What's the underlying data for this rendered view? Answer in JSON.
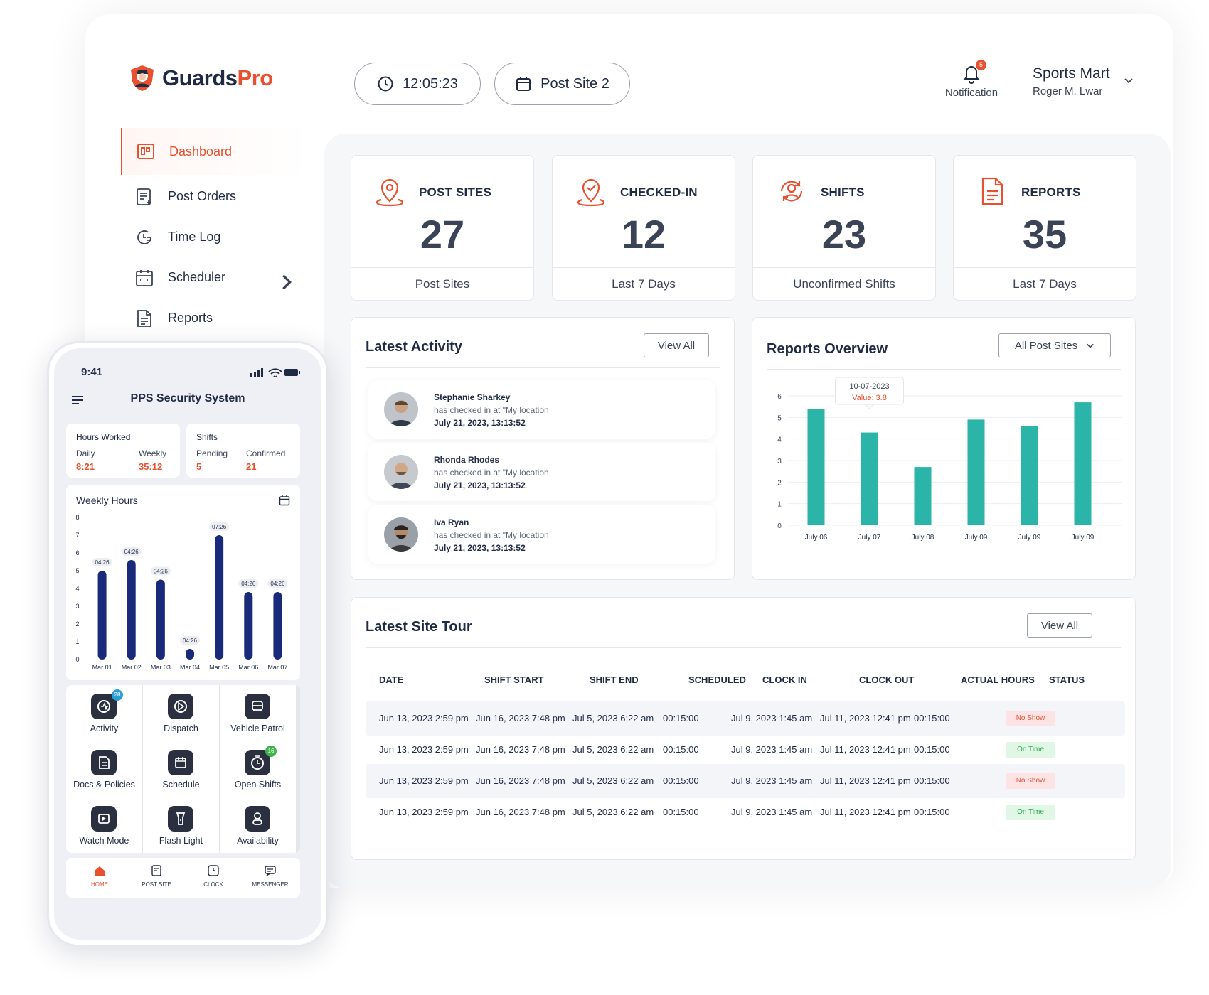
{
  "brand": {
    "name_dark": "Guards",
    "name_accent": "Pro"
  },
  "header": {
    "clock": "12:05:23",
    "site": "Post Site 2",
    "notification_label": "Notification",
    "notification_count": "5",
    "company": "Sports Mart",
    "user": "Roger M. Lwar"
  },
  "sidebar": {
    "items": [
      {
        "label": "Dashboard",
        "icon": "dashboard-icon",
        "active": true
      },
      {
        "label": "Post Orders",
        "icon": "post-orders-icon"
      },
      {
        "label": "Time Log",
        "icon": "time-log-icon"
      },
      {
        "label": "Scheduler",
        "icon": "calendar-icon",
        "has_submenu": true
      },
      {
        "label": "Reports",
        "icon": "report-icon"
      }
    ]
  },
  "stats": [
    {
      "title": "POST SITES",
      "value": "27",
      "footer": "Post Sites",
      "icon": "location-pin-icon"
    },
    {
      "title": "CHECKED-IN",
      "value": "12",
      "footer": "Last 7 Days",
      "icon": "check-location-icon"
    },
    {
      "title": "SHIFTS",
      "value": "23",
      "footer": "Unconfirmed Shifts",
      "icon": "user-sync-icon"
    },
    {
      "title": "REPORTS",
      "value": "35",
      "footer": "Last 7 Days",
      "icon": "document-icon"
    }
  ],
  "activity": {
    "title": "Latest Activity",
    "view_all": "View All",
    "items": [
      {
        "name": "Stephanie Sharkey",
        "desc": "has checked in at \"My location",
        "time": "July 21, 2023, 13:13:52"
      },
      {
        "name": "Rhonda Rhodes",
        "desc": "has checked in at \"My location",
        "time": "July 21, 2023, 13:13:52"
      },
      {
        "name": "Iva Ryan",
        "desc": "has checked in at \"My location",
        "time": "July 21, 2023, 13:13:52"
      }
    ]
  },
  "reports_overview": {
    "title": "Reports Overview",
    "filter": "All Post Sites",
    "tooltip": {
      "date": "10-07-2023",
      "value_label": "Value: 3.8"
    }
  },
  "chart_data": [
    {
      "type": "bar",
      "categories": [
        "July 06",
        "July 07",
        "July 08",
        "July 09",
        "July 09",
        "July 09"
      ],
      "values": [
        5.4,
        4.3,
        2.7,
        4.9,
        4.6,
        5.7
      ],
      "ylim": [
        0,
        6
      ],
      "yticks": [
        0,
        1,
        2,
        3,
        4,
        5,
        6
      ],
      "color": "#2ab5a8",
      "grid": true
    },
    {
      "type": "bar",
      "categories": [
        "Mar 01",
        "Mar 02",
        "Mar 03",
        "Mar 04",
        "Mar 05",
        "Mar 06",
        "Mar 07"
      ],
      "values": [
        5.0,
        5.6,
        4.5,
        0.6,
        7.0,
        3.8,
        3.8
      ],
      "labels": [
        "04:26",
        "04:26",
        "04:26",
        "04:26",
        "07:26",
        "04:26",
        "04:26"
      ],
      "ylim": [
        0,
        8
      ],
      "yticks": [
        0,
        1,
        2,
        3,
        4,
        5,
        6,
        7,
        8
      ],
      "color": "#1a2a7a"
    }
  ],
  "site_tour": {
    "title": "Latest Site Tour",
    "view_all": "View All",
    "headers": [
      "DATE",
      "SHIFT START",
      "SHIFT END",
      "SCHEDULED",
      "CLOCK IN",
      "CLOCK OUT",
      "ACTUAL HOURS",
      "STATUS"
    ],
    "rows": [
      {
        "date": "Jun 13, 2023 2:59 pm",
        "start": "Jun 16, 2023 7:48 pm",
        "end": "Jul 5, 2023 6:22 am",
        "scheduled": "00:15:00",
        "clock_in": "Jul 9, 2023 1:45 am",
        "clock_out": "Jul 11, 2023 12:41 pm",
        "actual": "00:15:00",
        "status": "No Show"
      },
      {
        "date": "Jun 13, 2023 2:59 pm",
        "start": "Jun 16, 2023 7:48 pm",
        "end": "Jul 5, 2023 6:22 am",
        "scheduled": "00:15:00",
        "clock_in": "Jul 9, 2023 1:45 am",
        "clock_out": "Jul 11, 2023 12:41 pm",
        "actual": "00:15:00",
        "status": "On Time"
      },
      {
        "date": "Jun 13, 2023 2:59 pm",
        "start": "Jun 16, 2023 7:48 pm",
        "end": "Jul 5, 2023 6:22 am",
        "scheduled": "00:15:00",
        "clock_in": "Jul 9, 2023 1:45 am",
        "clock_out": "Jul 11, 2023 12:41 pm",
        "actual": "00:15:00",
        "status": "No Show"
      },
      {
        "date": "Jun 13, 2023 2:59 pm",
        "start": "Jun 16, 2023 7:48 pm",
        "end": "Jul 5, 2023 6:22 am",
        "scheduled": "00:15:00",
        "clock_in": "Jul 9, 2023 1:45 am",
        "clock_out": "Jul 11, 2023 12:41 pm",
        "actual": "00:15:00",
        "status": "On Time"
      }
    ]
  },
  "phone": {
    "time": "9:41",
    "title": "PPS Security System",
    "hours": {
      "title": "Hours Worked",
      "daily_label": "Daily",
      "daily": "8:21",
      "weekly_label": "Weekly",
      "weekly": "35:12"
    },
    "shifts": {
      "title": "Shifts",
      "pending_label": "Pending",
      "pending": "5",
      "confirmed_label": "Confirmed",
      "confirmed": "21"
    },
    "weekly_title": "Weekly Hours",
    "grid": [
      {
        "label": "Activity",
        "icon": "activity-icon",
        "badge": "28",
        "badge_color": "#2a9fd6"
      },
      {
        "label": "Dispatch",
        "icon": "dispatch-icon"
      },
      {
        "label": "Vehicle Patrol",
        "icon": "vehicle-icon"
      },
      {
        "label": "Docs & Policies",
        "icon": "document-icon"
      },
      {
        "label": "Schedule",
        "icon": "calendar-icon"
      },
      {
        "label": "Open Shifts",
        "icon": "timer-icon",
        "badge": "16",
        "badge_color": "#3cb54a"
      },
      {
        "label": "Watch Mode",
        "icon": "watch-icon"
      },
      {
        "label": "Flash Light",
        "icon": "flashlight-icon"
      },
      {
        "label": "Availability",
        "icon": "person-icon"
      }
    ],
    "tabs": [
      {
        "label": "HOME",
        "icon": "home-icon",
        "active": true
      },
      {
        "label": "POST SITE",
        "icon": "post-site-icon"
      },
      {
        "label": "CLOCK",
        "icon": "clock-icon"
      },
      {
        "label": "MESSENGER",
        "icon": "message-icon"
      }
    ]
  },
  "colors": {
    "accent": "#e8502f",
    "teal": "#2ab5a8",
    "navy": "#1a2a7a",
    "no_show_bg": "#fde3e3",
    "no_show_fg": "#e8502f",
    "on_time_bg": "#e1f7e6",
    "on_time_fg": "#2fa84f"
  }
}
